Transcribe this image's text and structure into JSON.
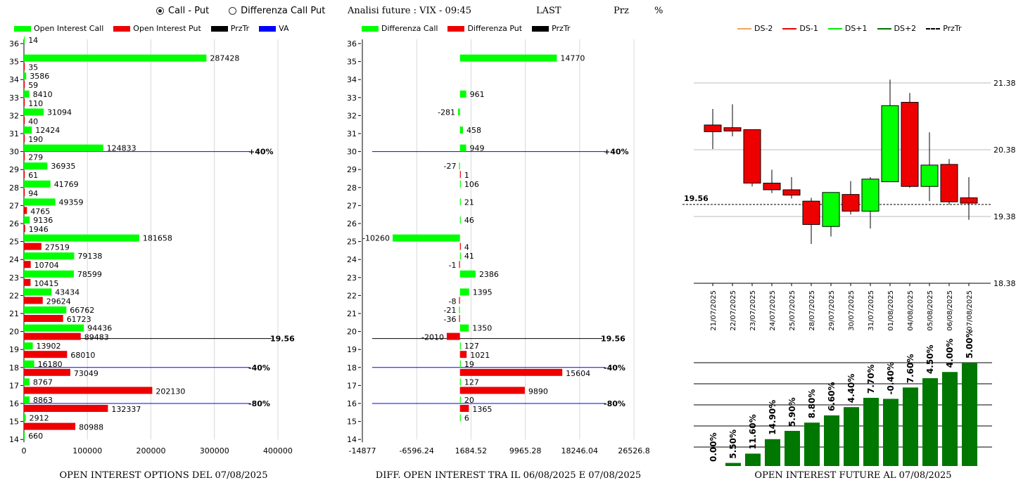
{
  "controls": {
    "radio_call_put": "Call - Put",
    "radio_diff": "Differenza Call Put",
    "selected": "call_put"
  },
  "header": {
    "analisi": "Analisi future : VIX - 09:45",
    "last": "LAST",
    "prz": "Prz",
    "pct": "%"
  },
  "colors": {
    "call": "#00ff00",
    "put": "#ee0000",
    "prztr": "#000000",
    "va": "#0000ff",
    "oi_future": "#007700",
    "ds_m2": "#f4a460",
    "ds_m1": "#ee0000",
    "ds_p1": "#00ee00",
    "ds_p2": "#007700"
  },
  "legends": {
    "left": [
      "Open Interest Call",
      "Open Interest Put",
      "PrzTr",
      "VA"
    ],
    "middle": [
      "Differenza Call",
      "Differenza Put",
      "PrzTr"
    ],
    "right": [
      "DS-2",
      "DS-1",
      "DS+1",
      "DS+2",
      "PrzTr"
    ]
  },
  "captions": {
    "left": "OPEN INTEREST OPTIONS DEL 07/08/2025",
    "middle": "DIFF. OPEN INTEREST TRA IL 06/08/2025 E 07/08/2025",
    "right": "OPEN INTEREST FUTURE AL 07/08/2025"
  },
  "chart_data": [
    {
      "type": "bar",
      "orientation": "horizontal",
      "categories": [
        36,
        35,
        34,
        33,
        32,
        31,
        30,
        29,
        28,
        27,
        26,
        25,
        24,
        23,
        22,
        21,
        20,
        19,
        18,
        17,
        16,
        15,
        14
      ],
      "series": [
        {
          "name": "Open Interest Call",
          "values": [
            14,
            287428,
            3586,
            8410,
            31094,
            12424,
            124833,
            36935,
            41769,
            49359,
            9136,
            181658,
            79138,
            78599,
            43434,
            66762,
            94436,
            13902,
            16180,
            8767,
            8863,
            2912,
            660
          ]
        },
        {
          "name": "Open Interest Put",
          "values": [
            null,
            35,
            59,
            110,
            40,
            190,
            279,
            61,
            94,
            4765,
            1946,
            27519,
            10704,
            10415,
            29624,
            61723,
            89483,
            68010,
            73049,
            202130,
            132337,
            80988,
            null
          ]
        }
      ],
      "xlim": [
        0,
        420000
      ],
      "xticks": [
        "0",
        "100000",
        "200000",
        "300000",
        "400000"
      ],
      "reference_lines": [
        {
          "strike": 30,
          "label": "+40%",
          "color": "#0000ff"
        },
        {
          "strike": 20,
          "label": "19.56",
          "color": "#000000"
        },
        {
          "strike": 18,
          "label": "-40%",
          "color": "#0000ff"
        },
        {
          "strike": 16,
          "label": "-80%",
          "color": "#0000ff"
        }
      ]
    },
    {
      "type": "bar",
      "orientation": "horizontal",
      "categories": [
        36,
        35,
        34,
        33,
        32,
        31,
        30,
        29,
        28,
        27,
        26,
        25,
        24,
        23,
        22,
        21,
        20,
        19,
        18,
        17,
        16,
        15,
        14
      ],
      "series": [
        {
          "name": "Differenza Call",
          "values": [
            null,
            14770,
            null,
            961,
            -281,
            458,
            949,
            -27,
            106,
            21,
            46,
            -10260,
            41,
            2386,
            1395,
            -21,
            1350,
            127,
            19,
            127,
            20,
            6,
            null
          ]
        },
        {
          "name": "Differenza Put",
          "values": [
            null,
            null,
            null,
            null,
            null,
            null,
            null,
            1,
            null,
            null,
            null,
            4,
            -1,
            null,
            -8,
            -36,
            -2010,
            1021,
            15604,
            9890,
            1365,
            null,
            null
          ]
        }
      ],
      "xlim": [
        -14877,
        26526.8
      ],
      "xticks": [
        "-14877",
        "-6596.24",
        "1684.52",
        "9965.28",
        "18246.04",
        "26526.8"
      ],
      "reference_lines": [
        {
          "strike": 30,
          "label": "+40%",
          "color": "#0000ff"
        },
        {
          "strike": 20,
          "label": "19.56",
          "color": "#000000"
        },
        {
          "strike": 18,
          "label": "-40%",
          "color": "#0000ff"
        },
        {
          "strike": 16,
          "label": "-80%",
          "color": "#0000ff"
        }
      ]
    },
    {
      "type": "candlestick",
      "dates": [
        "21/07/2025",
        "22/07/2025",
        "23/07/2025",
        "24/07/2025",
        "25/07/2025",
        "28/07/2025",
        "29/07/2025",
        "30/07/2025",
        "31/07/2025",
        "01/08/2025",
        "04/08/2025",
        "05/08/2025",
        "06/08/2025",
        "07/08/2025"
      ],
      "ohlc": [
        [
          20.75,
          20.99,
          20.39,
          20.65
        ],
        [
          20.71,
          21.06,
          20.58,
          20.66
        ],
        [
          20.68,
          20.68,
          19.83,
          19.88
        ],
        [
          19.88,
          20.08,
          19.73,
          19.78
        ],
        [
          19.78,
          19.97,
          19.65,
          19.7
        ],
        [
          19.61,
          19.66,
          18.97,
          19.26
        ],
        [
          19.23,
          19.73,
          19.08,
          19.74
        ],
        [
          19.71,
          19.91,
          19.41,
          19.46
        ],
        [
          19.46,
          19.97,
          19.2,
          19.94
        ],
        [
          19.9,
          21.43,
          19.9,
          21.04
        ],
        [
          21.09,
          21.23,
          19.81,
          19.83
        ],
        [
          19.83,
          20.64,
          19.61,
          20.15
        ],
        [
          20.16,
          20.24,
          19.56,
          19.6
        ],
        [
          19.66,
          19.97,
          19.33,
          19.58
        ]
      ],
      "ylim": [
        18.38,
        21.38
      ],
      "yticks": [
        "21.38",
        "20.38",
        "19.38",
        "18.38"
      ],
      "last_price": "19.56"
    },
    {
      "type": "bar",
      "categories": [
        "21/07/2025",
        "22/07/2025",
        "23/07/2025",
        "24/07/2025",
        "25/07/2025",
        "28/07/2025",
        "29/07/2025",
        "30/07/2025",
        "31/07/2025",
        "01/08/2025",
        "04/08/2025",
        "05/08/2025",
        "06/08/2025",
        "07/08/2025"
      ],
      "values": [
        0,
        0.3,
        1.2,
        2.6,
        3.4,
        4.2,
        4.9,
        5.7,
        6.6,
        6.5,
        7.6,
        8.5,
        9.1,
        10.0
      ],
      "labels": [
        "0.00%",
        "5.50%",
        "11.60%",
        "14.90%",
        "5.90%",
        "8.80%",
        "6.60%",
        "4.40%",
        "7.70%",
        "-0.40%",
        "7.60%",
        "4.50%",
        "4.00%",
        "5.00%"
      ]
    }
  ]
}
